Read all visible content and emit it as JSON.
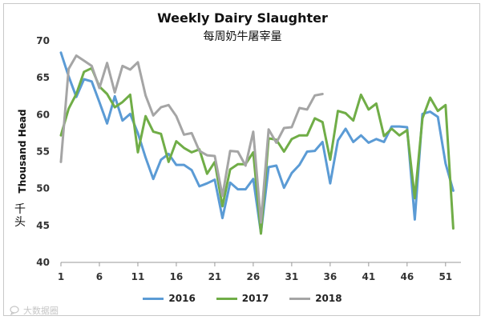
{
  "chart_data": {
    "type": "line",
    "title": "Weekly Dairy Slaughter",
    "subtitle": "每周奶牛屠宰量",
    "xlabel": "",
    "ylabel": "Thousand Head",
    "ylabel_sub": "千头",
    "xlim": [
      1,
      53
    ],
    "ylim": [
      40,
      70
    ],
    "x_ticks": [
      "1",
      "6",
      "11",
      "16",
      "21",
      "26",
      "31",
      "36",
      "41",
      "46",
      "51"
    ],
    "y_ticks": [
      "40",
      "45",
      "50",
      "55",
      "60",
      "65",
      "70"
    ],
    "grid": false,
    "legend_position": "bottom",
    "series": [
      {
        "name": "2016",
        "color": "#5b9bd5",
        "x": [
          1,
          2,
          3,
          4,
          5,
          6,
          7,
          8,
          9,
          10,
          11,
          12,
          13,
          14,
          15,
          16,
          17,
          18,
          19,
          20,
          21,
          22,
          23,
          24,
          25,
          26,
          27,
          28,
          29,
          30,
          31,
          32,
          33,
          34,
          35,
          36,
          37,
          38,
          39,
          40,
          41,
          42,
          43,
          44,
          45,
          46,
          47,
          48,
          49,
          50,
          51,
          52
        ],
        "values": [
          68.4,
          65.2,
          62.4,
          64.8,
          64.5,
          61.7,
          58.8,
          62.5,
          59.2,
          60.1,
          57.5,
          54.2,
          51.3,
          53.9,
          54.7,
          53.2,
          53.2,
          52.5,
          50.3,
          50.7,
          51.2,
          46.0,
          50.8,
          49.9,
          49.9,
          51.3,
          44.0,
          52.9,
          53.1,
          50.1,
          52.1,
          53.2,
          55.0,
          55.1,
          56.3,
          50.7,
          56.5,
          58.1,
          56.3,
          57.2,
          56.2,
          56.7,
          56.3,
          58.4,
          58.4,
          58.3,
          45.8,
          60.1,
          60.4,
          59.7,
          53.4,
          49.7
        ]
      },
      {
        "name": "2017",
        "color": "#70ad47",
        "x": [
          1,
          2,
          3,
          4,
          5,
          6,
          7,
          8,
          9,
          10,
          11,
          12,
          13,
          14,
          15,
          16,
          17,
          18,
          19,
          20,
          21,
          22,
          23,
          24,
          25,
          26,
          27,
          28,
          29,
          30,
          31,
          32,
          33,
          34,
          35,
          36,
          37,
          38,
          39,
          40,
          41,
          42,
          43,
          44,
          45,
          46,
          47,
          48,
          49,
          50,
          51,
          52
        ],
        "values": [
          57.2,
          60.8,
          62.8,
          65.8,
          66.3,
          63.8,
          62.8,
          61.0,
          61.7,
          62.7,
          54.9,
          59.8,
          57.7,
          57.4,
          53.6,
          56.4,
          55.5,
          54.9,
          55.3,
          52.0,
          53.6,
          47.6,
          52.6,
          53.3,
          53.3,
          54.9,
          43.9,
          56.8,
          56.6,
          55.0,
          56.7,
          57.2,
          57.2,
          59.5,
          59.0,
          53.9,
          60.5,
          60.2,
          59.2,
          62.7,
          60.7,
          61.5,
          57.1,
          58.1,
          57.2,
          57.9,
          48.7,
          59.5,
          62.3,
          60.5,
          61.3,
          44.6
        ]
      },
      {
        "name": "2018",
        "color": "#a5a5a5",
        "x": [
          1,
          2,
          3,
          4,
          5,
          6,
          7,
          8,
          9,
          10,
          11,
          12,
          13,
          14,
          15,
          16,
          17,
          18,
          19,
          20,
          21,
          22,
          23,
          24,
          25,
          26,
          27,
          28,
          29,
          30,
          31,
          32,
          33,
          34,
          35
        ],
        "values": [
          53.6,
          66.2,
          68.0,
          67.3,
          66.6,
          63.6,
          67.0,
          63.0,
          66.6,
          66.1,
          67.1,
          62.6,
          59.9,
          61.0,
          61.3,
          59.8,
          57.3,
          57.5,
          55.1,
          54.5,
          54.4,
          49.0,
          55.1,
          55.0,
          53.1,
          57.7,
          45.4,
          58.0,
          56.2,
          58.2,
          58.3,
          60.9,
          60.7,
          62.6,
          62.8
        ]
      }
    ]
  },
  "watermark": "大数据圈"
}
